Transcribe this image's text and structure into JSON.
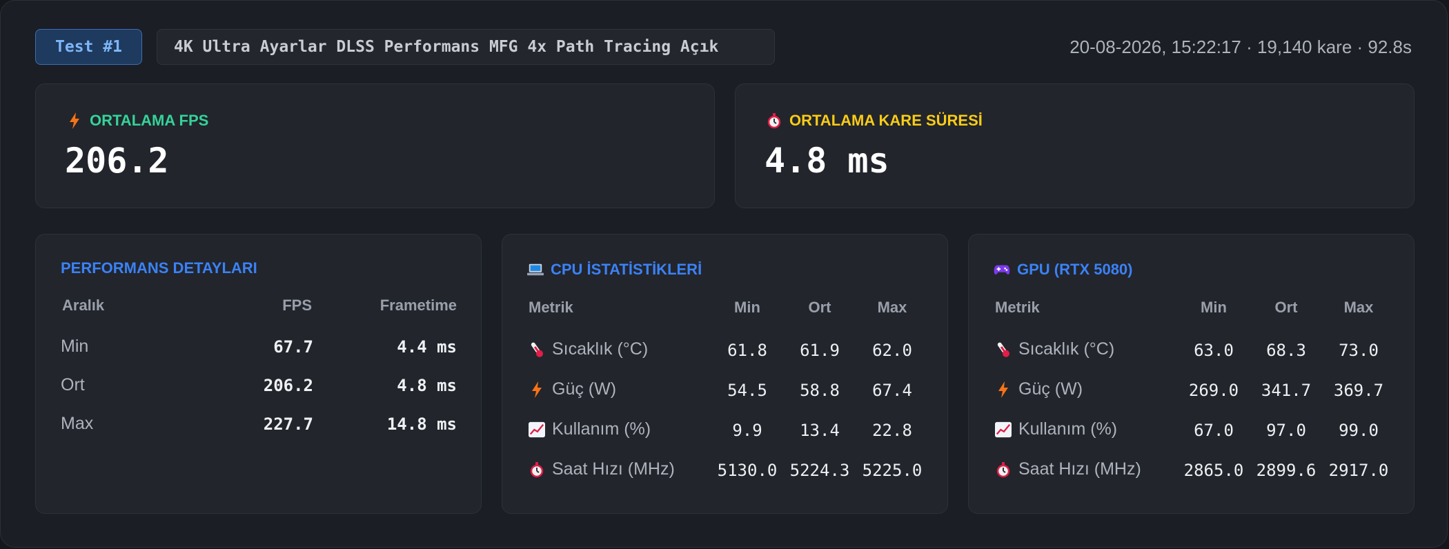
{
  "header": {
    "badge": "Test #1",
    "description": "4K Ultra Ayarlar DLSS Performans MFG 4x Path Tracing Açık",
    "meta": "20-08-2026, 15:22:17 · 19,140 kare · 92.8s"
  },
  "fps_card": {
    "label": "ORTALAMA FPS",
    "value": "206.2",
    "icon": "lightning-icon",
    "color": "#34d399"
  },
  "frametime_card": {
    "label": "ORTALAMA KARE SÜRESİ",
    "value": "4.8 ms",
    "icon": "stopwatch-icon",
    "color": "#facc15"
  },
  "performance": {
    "title": "PERFORMANS DETAYLARI",
    "headers": [
      "Aralık",
      "FPS",
      "Frametime"
    ],
    "rows": [
      {
        "label": "Min",
        "fps": "67.7",
        "frametime": "4.4 ms"
      },
      {
        "label": "Ort",
        "fps": "206.2",
        "frametime": "4.8 ms"
      },
      {
        "label": "Max",
        "fps": "227.7",
        "frametime": "14.8 ms"
      }
    ]
  },
  "cpu": {
    "title": "CPU İSTATİSTİKLERİ",
    "icon": "laptop-icon",
    "headers": [
      "Metrik",
      "Min",
      "Ort",
      "Max"
    ],
    "rows": [
      {
        "icon": "thermometer-icon",
        "label": "Sıcaklık (°C)",
        "min": "61.8",
        "avg": "61.9",
        "max": "62.0"
      },
      {
        "icon": "lightning-icon",
        "label": "Güç (W)",
        "min": "54.5",
        "avg": "58.8",
        "max": "67.4"
      },
      {
        "icon": "chart-up-icon",
        "label": "Kullanım (%)",
        "min": "9.9",
        "avg": "13.4",
        "max": "22.8"
      },
      {
        "icon": "stopwatch-icon",
        "label": "Saat Hızı (MHz)",
        "min": "5130.0",
        "avg": "5224.3",
        "max": "5225.0"
      }
    ]
  },
  "gpu": {
    "title": "GPU (RTX 5080)",
    "icon": "gamepad-icon",
    "headers": [
      "Metrik",
      "Min",
      "Ort",
      "Max"
    ],
    "rows": [
      {
        "icon": "thermometer-icon",
        "label": "Sıcaklık (°C)",
        "min": "63.0",
        "avg": "68.3",
        "max": "73.0"
      },
      {
        "icon": "lightning-icon",
        "label": "Güç (W)",
        "min": "269.0",
        "avg": "341.7",
        "max": "369.7"
      },
      {
        "icon": "chart-up-icon",
        "label": "Kullanım (%)",
        "min": "67.0",
        "avg": "97.0",
        "max": "99.0"
      },
      {
        "icon": "stopwatch-icon",
        "label": "Saat Hızı (MHz)",
        "min": "2865.0",
        "avg": "2899.6",
        "max": "2917.0"
      }
    ]
  }
}
